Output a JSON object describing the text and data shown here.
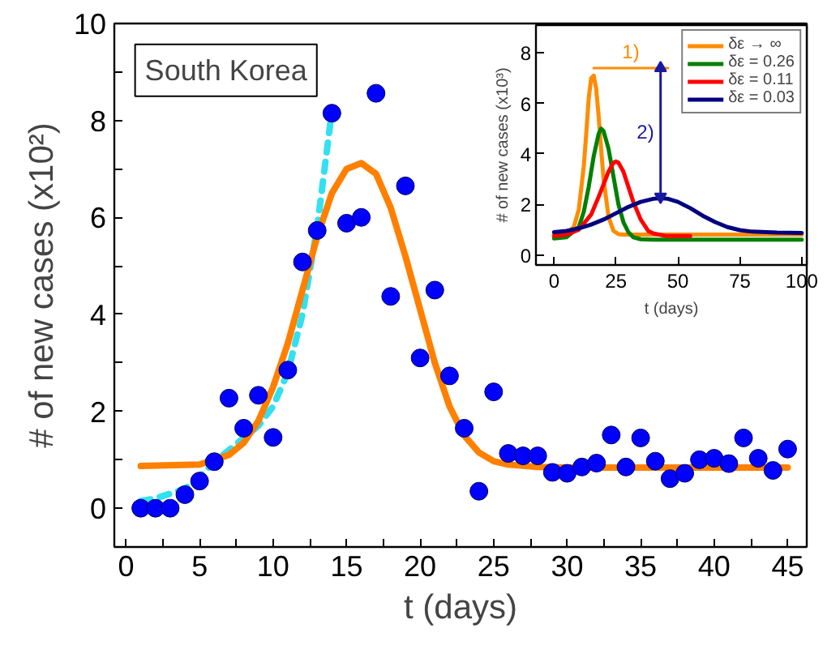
{
  "chart_data": [
    {
      "type": "scatter",
      "xlabel": "t (days)",
      "ylabel": "# of new cases (x10²)",
      "annotations": [
        "South Korea"
      ],
      "legend": false,
      "grid": false,
      "xlim": [
        -0.8,
        46.3
      ],
      "ylim": [
        -0.8,
        10
      ],
      "xticks": [
        0,
        {
          "value": 2.5,
          "label": null
        },
        5,
        {
          "value": 7.5,
          "label": null
        },
        10,
        {
          "value": 12.5,
          "label": null
        },
        15,
        {
          "value": 17.5,
          "label": null
        },
        20,
        {
          "value": 22.5,
          "label": null
        },
        25,
        {
          "value": 27.5,
          "label": null
        },
        30,
        {
          "value": 32.5,
          "label": null
        },
        35,
        {
          "value": 37.5,
          "label": null
        },
        40,
        {
          "value": 42.5,
          "label": null
        },
        45
      ],
      "yticks": [
        0,
        {
          "value": 1,
          "label": null
        },
        2,
        {
          "value": 3,
          "label": null
        },
        4,
        {
          "value": 5,
          "label": null
        },
        6,
        {
          "value": 7,
          "label": null
        },
        8,
        {
          "value": 9,
          "label": null
        },
        10
      ],
      "series": [
        {
          "type": "line",
          "color": "#33e0f0",
          "line_style": "dashed",
          "x": [
            1,
            2,
            3,
            4,
            5,
            6,
            7,
            8,
            9,
            10,
            11,
            12,
            13,
            14
          ],
          "values": [
            0.15,
            0.2,
            0.3,
            0.4,
            0.65,
            0.95,
            1.2,
            1.45,
            1.7,
            2.1,
            2.8,
            4.0,
            5.8,
            8.2
          ]
        },
        {
          "type": "line",
          "color": "#ff8000",
          "x": [
            1,
            5,
            7,
            8,
            9,
            10,
            11,
            12,
            13,
            14,
            15,
            16,
            17,
            18,
            19,
            20,
            21,
            22,
            23,
            24,
            25,
            26,
            28,
            30,
            45
          ],
          "values": [
            0.87,
            0.9,
            1.1,
            1.35,
            1.8,
            2.5,
            3.4,
            4.5,
            5.6,
            6.5,
            7.0,
            7.12,
            6.9,
            6.2,
            5.2,
            4.1,
            3.0,
            2.1,
            1.5,
            1.15,
            0.97,
            0.9,
            0.85,
            0.84,
            0.84
          ]
        },
        {
          "type": "scatter",
          "color": "#0000ff",
          "marker": "circle",
          "x": [
            1,
            2,
            3,
            4,
            5,
            6,
            7,
            8,
            9,
            10,
            11,
            12,
            13,
            14,
            15,
            16,
            17,
            18,
            19,
            20,
            21,
            22,
            23,
            24,
            25,
            26,
            27,
            28,
            29,
            30,
            31,
            32,
            33,
            34,
            35,
            36,
            37,
            38,
            39,
            40,
            41,
            42,
            43,
            44,
            45
          ],
          "values": [
            0,
            0,
            0,
            0.28,
            0.56,
            0.96,
            2.27,
            1.65,
            2.33,
            1.46,
            2.85,
            5.08,
            5.73,
            8.15,
            5.88,
            6.0,
            8.56,
            4.37,
            6.65,
            3.1,
            4.5,
            2.73,
            1.65,
            0.35,
            2.4,
            1.13,
            1.08,
            1.08,
            0.74,
            0.72,
            0.85,
            0.93,
            1.51,
            0.85,
            1.45,
            0.97,
            0.61,
            0.72,
            1.0,
            1.03,
            0.92,
            1.45,
            1.03,
            0.78,
            1.22
          ]
        }
      ]
    },
    {
      "type": "line",
      "xlabel": "t (days)",
      "ylabel": "# of new cases (x10³)",
      "legend": "top right",
      "grid": false,
      "xlim": [
        -7.3,
        102
      ],
      "ylim": [
        -0.4,
        9.1
      ],
      "xticks": [
        0,
        25,
        50,
        75,
        100
      ],
      "yticks": [
        0,
        2,
        4,
        6,
        8
      ],
      "annotations": [
        "1)",
        "2)"
      ],
      "series": [
        {
          "name": "δε → ∞",
          "color": "#ff8c00",
          "x": [
            0,
            5,
            8,
            10,
            12,
            13,
            14,
            15,
            16,
            17,
            18,
            19,
            20,
            22,
            24,
            26,
            28,
            30,
            40,
            60,
            80,
            100
          ],
          "values": [
            0.8,
            0.85,
            1.1,
            1.8,
            3.5,
            4.8,
            6.2,
            7.0,
            7.1,
            6.6,
            5.5,
            4.2,
            3.0,
            1.5,
            0.95,
            0.82,
            0.8,
            0.8,
            0.8,
            0.8,
            0.8,
            0.8
          ]
        },
        {
          "name": "δε = 0.26",
          "color": "#008000",
          "x": [
            0,
            5,
            10,
            12,
            14,
            16,
            18,
            19,
            20,
            22,
            24,
            26,
            28,
            30,
            32,
            35,
            40,
            60,
            100
          ],
          "values": [
            0.65,
            0.7,
            1.1,
            1.7,
            2.7,
            3.9,
            4.8,
            5.0,
            4.9,
            4.2,
            3.1,
            2.0,
            1.3,
            0.9,
            0.7,
            0.62,
            0.6,
            0.6,
            0.6
          ]
        },
        {
          "name": "δε = 0.11",
          "color": "#ff0000",
          "x": [
            0,
            5,
            10,
            15,
            18,
            20,
            22,
            24,
            25,
            26,
            28,
            30,
            32,
            35,
            38,
            40,
            45,
            50,
            55
          ],
          "values": [
            0.75,
            0.8,
            1.0,
            1.6,
            2.3,
            2.8,
            3.3,
            3.65,
            3.7,
            3.65,
            3.3,
            2.7,
            2.1,
            1.4,
            0.95,
            0.85,
            0.75,
            0.75,
            0.75
          ]
        },
        {
          "name": "δε = 0.03",
          "color": "#000080",
          "x": [
            0,
            5,
            10,
            15,
            20,
            25,
            30,
            35,
            40,
            43,
            46,
            50,
            55,
            60,
            65,
            70,
            75,
            80,
            90,
            100
          ],
          "values": [
            0.9,
            0.95,
            1.05,
            1.2,
            1.4,
            1.65,
            1.9,
            2.1,
            2.22,
            2.25,
            2.22,
            2.1,
            1.85,
            1.55,
            1.3,
            1.1,
            0.98,
            0.92,
            0.88,
            0.87
          ]
        },
        {
          "type": "line",
          "color": "#ff8c00",
          "x": [
            16,
            46
          ],
          "values": [
            7.4,
            7.4
          ]
        },
        {
          "type": "line",
          "color": "#1a1aa0",
          "marker": "triangle",
          "x": [
            43,
            43
          ],
          "values": [
            7.4,
            2.3
          ]
        }
      ]
    }
  ]
}
